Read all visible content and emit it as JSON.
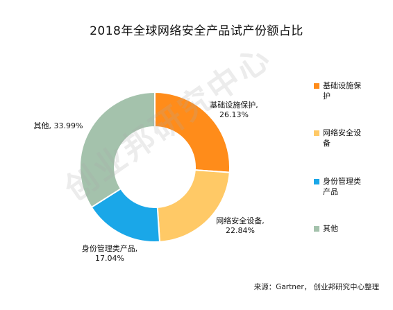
{
  "title": "2018年全球网络安全产品试产份额占比",
  "source": "来源：Gartner， 创业邦研究中心整理",
  "watermark": "创业邦研究中心",
  "chart_data": {
    "type": "pie",
    "title": "2018年全球网络安全产品试产份额占比",
    "donut": true,
    "legend_position": "right",
    "slices": [
      {
        "name": "基础设施保护",
        "label": "基础设施保护,",
        "value": 26.13,
        "value_text": "26.13%",
        "color": "#FF8C1A"
      },
      {
        "name": "网络安全设备",
        "label": "网络安全设备,",
        "value": 22.84,
        "value_text": "22.84%",
        "color": "#FFC966"
      },
      {
        "name": "身份管理类产品",
        "label": "身份管理类产品,",
        "value": 17.04,
        "value_text": "17.04%",
        "color": "#1AA7E8"
      },
      {
        "name": "其他",
        "label": "其他,",
        "value": 33.99,
        "value_text": "33.99%",
        "color": "#A4C2AC"
      }
    ]
  }
}
